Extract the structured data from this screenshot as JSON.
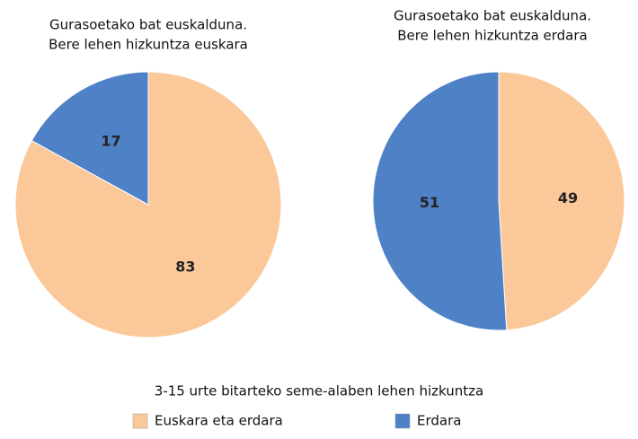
{
  "chart_data": [
    {
      "type": "pie",
      "title": "Gurasoetako bat euskalduna.",
      "subtitle": "Bere lehen hizkuntza euskara",
      "categories": [
        "Euskara eta erdara",
        "Erdara"
      ],
      "values": [
        83,
        17
      ],
      "colors": [
        "#fbc89a",
        "#4f81c7"
      ]
    },
    {
      "type": "pie",
      "title": "Gurasoetako bat euskalduna.",
      "subtitle": "Bere lehen hizkuntza erdara",
      "categories": [
        "Euskara eta erdara",
        "Erdara"
      ],
      "values": [
        49,
        51
      ],
      "colors": [
        "#fbc89a",
        "#4f81c7"
      ]
    }
  ],
  "legend_title": "3-15 urte bitarteko seme-alaben lehen hizkuntza"
}
